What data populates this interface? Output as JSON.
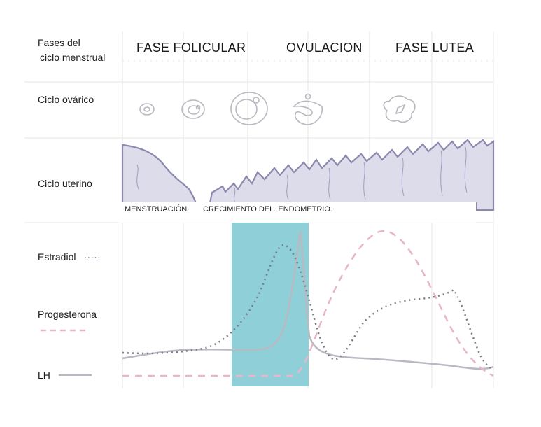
{
  "row_labels": {
    "phases": [
      "Fases del",
      "ciclo menstrual"
    ],
    "ovarian": "Ciclo ovárico",
    "uterine": "Ciclo uterino",
    "estradiol": "Estradiol",
    "estradiol_legend": ".....",
    "progesterone": "Progesterona",
    "lh": "LH"
  },
  "phase_titles": [
    "FASE FOLICULAR",
    "OVULACION",
    "FASE LUTEA"
  ],
  "uterine_labels": [
    "MENSTRUACIÓN",
    "CRECIMIENTO DEL. ENDOMETRIO."
  ],
  "colors": {
    "ovulation_band": "#8fd0d8",
    "estradiol": "#7a7a88",
    "progesterone": "#e8b7c7",
    "lh": "#b9b9c2",
    "endometrium_fill": "#dcdcea",
    "endometrium_stroke": "#8c88ae",
    "grid": "#e5e5e5"
  },
  "icons": [
    "follicle-icon-1",
    "follicle-icon-2",
    "follicle-icon-3",
    "ovulating-follicle-icon",
    "corpus-luteum-icon"
  ]
}
